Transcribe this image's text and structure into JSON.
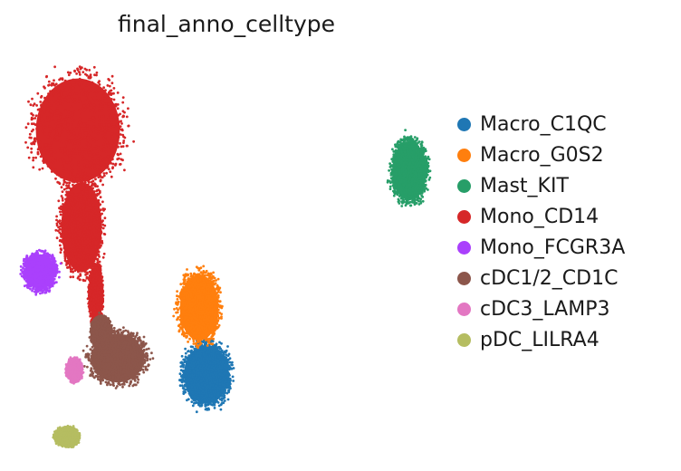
{
  "chart_data": {
    "type": "scatter",
    "title": "final_anno_celltype",
    "xlabel": "",
    "ylabel": "",
    "axes_visible": false,
    "grid": false,
    "legend_position": "right",
    "series": [
      {
        "name": "Macro_C1QC",
        "color": "#1f77b4",
        "clusters": [
          {
            "cx": 0.52,
            "cy": 0.195,
            "rx": 0.072,
            "ry": 0.085
          }
        ]
      },
      {
        "name": "Macro_G0S2",
        "color": "#ff7f0e",
        "clusters": [
          {
            "cx": 0.5,
            "cy": 0.36,
            "rx": 0.062,
            "ry": 0.095
          }
        ]
      },
      {
        "name": "Mast_KIT",
        "color": "#279e68",
        "clusters": [
          {
            "cx": 1.08,
            "cy": 0.7,
            "rx": 0.055,
            "ry": 0.085
          }
        ]
      },
      {
        "name": "Mono_CD14",
        "color": "#d62728",
        "clusters": [
          {
            "cx": 0.165,
            "cy": 0.8,
            "rx": 0.135,
            "ry": 0.15
          },
          {
            "cx": 0.175,
            "cy": 0.56,
            "rx": 0.065,
            "ry": 0.13
          },
          {
            "cx": 0.215,
            "cy": 0.39,
            "rx": 0.02,
            "ry": 0.08
          }
        ]
      },
      {
        "name": "Mono_FCGR3A",
        "color": "#aa40fc",
        "clusters": [
          {
            "cx": 0.06,
            "cy": 0.45,
            "rx": 0.048,
            "ry": 0.05
          }
        ]
      },
      {
        "name": "cDC1/2_CD1C",
        "color": "#8c564b",
        "clusters": [
          {
            "cx": 0.275,
            "cy": 0.235,
            "rx": 0.085,
            "ry": 0.07
          },
          {
            "cx": 0.23,
            "cy": 0.3,
            "rx": 0.03,
            "ry": 0.04
          }
        ]
      },
      {
        "name": "cDC3_LAMP3",
        "color": "#e377c2",
        "clusters": [
          {
            "cx": 0.155,
            "cy": 0.205,
            "rx": 0.022,
            "ry": 0.03
          }
        ]
      },
      {
        "name": "pDC_LILRA4",
        "color": "#b5bd61",
        "clusters": [
          {
            "cx": 0.135,
            "cy": 0.04,
            "rx": 0.035,
            "ry": 0.025
          }
        ]
      }
    ]
  }
}
